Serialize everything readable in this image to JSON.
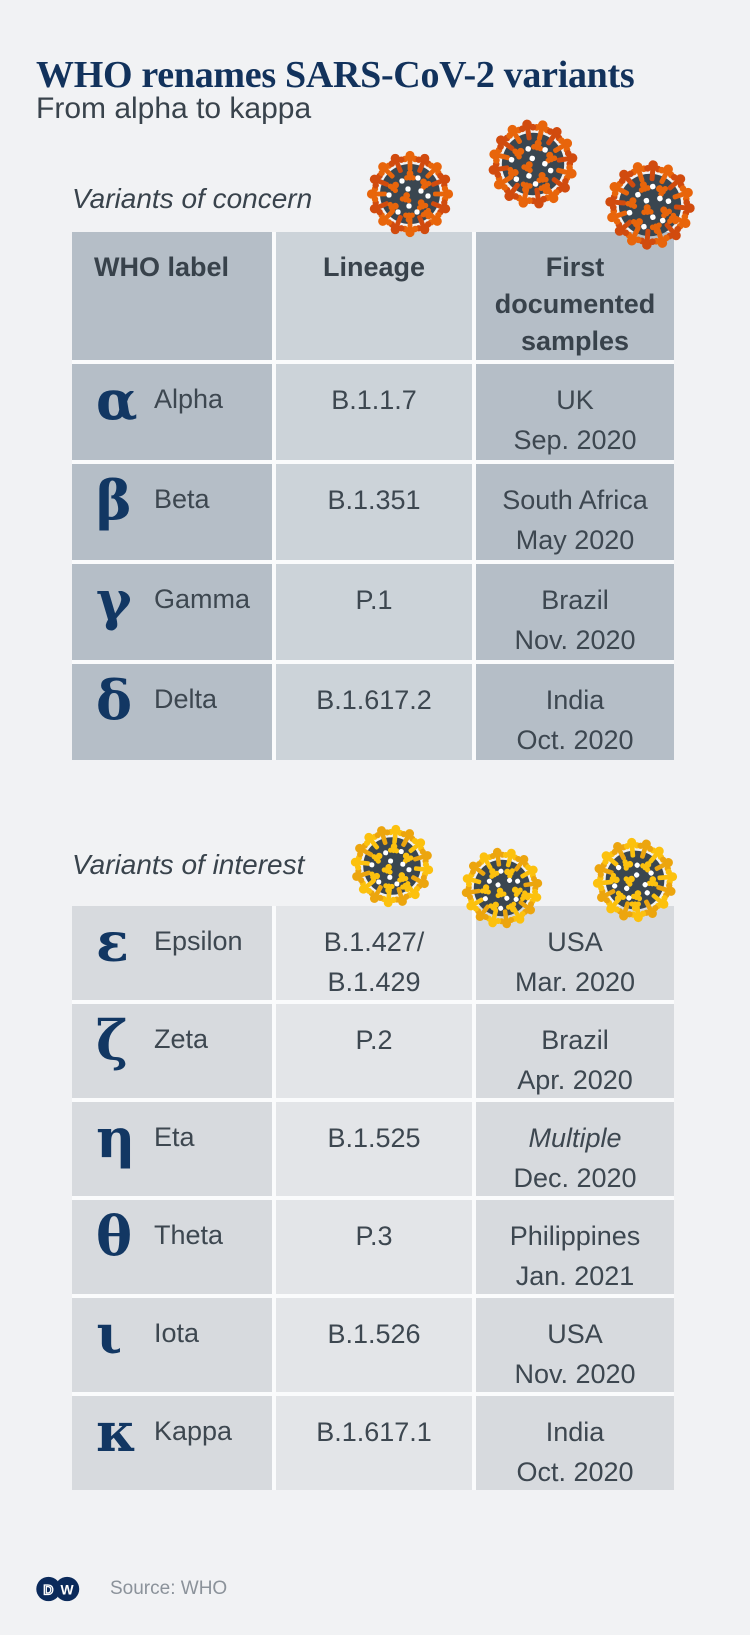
{
  "page": {
    "title": "WHO renames SARS-CoV-2 variants",
    "subtitle": "From alpha to kappa",
    "source_label": "Source: WHO",
    "logo_d": "D",
    "logo_w": "W"
  },
  "colors": {
    "background": "#f1f2f4",
    "title_navy": "#12325c",
    "text_dark": "#3d4750",
    "greek_navy": "#123763",
    "table1_cell_dark": "#b5bec7",
    "table1_cell_light": "#ccd3d9",
    "table2_cell_dark": "#d7dade",
    "table2_cell_light": "#e3e5e8",
    "virus_core": "#3a4650",
    "virus_concern_primary": "#e8650b",
    "virus_concern_secondary": "#d14b0e",
    "virus_interest_primary": "#fcc10e",
    "virus_interest_secondary": "#eca50e",
    "source_text": "#8b929a",
    "dw_navy": "#0b2a5b"
  },
  "chart_data": [
    {
      "type": "table",
      "title": "Variants of concern",
      "virus_style": "concern",
      "show_header": true,
      "columns": [
        "WHO label",
        "Lineage",
        "First documented samples"
      ],
      "rows": [
        {
          "symbol": "α",
          "name": "Alpha",
          "lineage": "B.1.1.7",
          "location": "UK",
          "date": "Sep. 2020",
          "location_italic": false
        },
        {
          "symbol": "β",
          "name": "Beta",
          "lineage": "B.1.351",
          "location": "South Africa",
          "date": "May 2020",
          "location_italic": false
        },
        {
          "symbol": "γ",
          "name": "Gamma",
          "lineage": "P.1",
          "location": "Brazil",
          "date": "Nov. 2020",
          "location_italic": false
        },
        {
          "symbol": "δ",
          "name": "Delta",
          "lineage": "B.1.617.2",
          "location": "India",
          "date": "Oct. 2020",
          "location_italic": false
        }
      ]
    },
    {
      "type": "table",
      "title": "Variants of interest",
      "virus_style": "interest",
      "show_header": false,
      "rows": [
        {
          "symbol": "ε",
          "name": "Epsilon",
          "lineage": "B.1.427/\nB.1.429",
          "location": "USA",
          "date": "Mar. 2020",
          "location_italic": false
        },
        {
          "symbol": "ζ",
          "name": "Zeta",
          "lineage": "P.2",
          "location": "Brazil",
          "date": "Apr. 2020",
          "location_italic": false
        },
        {
          "symbol": "η",
          "name": "Eta",
          "lineage": "B.1.525",
          "location": "Multiple",
          "date": "Dec. 2020",
          "location_italic": true
        },
        {
          "symbol": "θ",
          "name": "Theta",
          "lineage": "P.3",
          "location": "Philippines",
          "date": "Jan. 2021",
          "location_italic": false
        },
        {
          "symbol": "ι",
          "name": "Iota",
          "lineage": "B.1.526",
          "location": "USA",
          "date": "Nov. 2020",
          "location_italic": false
        },
        {
          "symbol": "κ",
          "name": "Kappa",
          "lineage": "B.1.617.1",
          "location": "India",
          "date": "Oct. 2020",
          "location_italic": false
        }
      ]
    }
  ]
}
